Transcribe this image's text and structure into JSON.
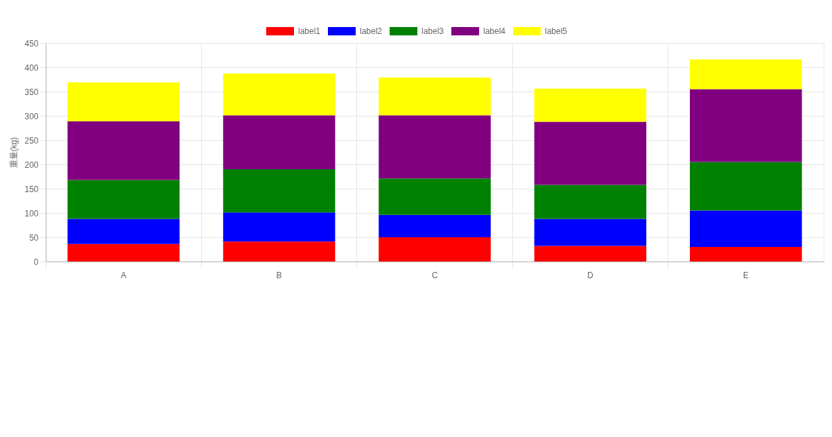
{
  "chart_data": {
    "type": "bar",
    "stacked": true,
    "ylabel": "重量(kg)",
    "categories": [
      "A",
      "B",
      "C",
      "D",
      "E"
    ],
    "series": [
      {
        "name": "label1",
        "color": "#ff0000",
        "values": [
          36,
          41,
          50,
          32,
          30
        ]
      },
      {
        "name": "label2",
        "color": "#0000ff",
        "values": [
          52,
          60,
          46,
          56,
          75
        ]
      },
      {
        "name": "label3",
        "color": "#008000",
        "values": [
          80,
          89,
          75,
          70,
          100
        ]
      },
      {
        "name": "label4",
        "color": "#800080",
        "values": [
          121,
          111,
          130,
          130,
          150
        ]
      },
      {
        "name": "label5",
        "color": "#ffff00",
        "values": [
          80,
          86,
          78,
          68,
          61
        ]
      }
    ],
    "ylim": [
      0,
      450
    ],
    "yticks": [
      0,
      50,
      100,
      150,
      200,
      250,
      300,
      350,
      400,
      450
    ],
    "grid": true,
    "legend": "top"
  }
}
